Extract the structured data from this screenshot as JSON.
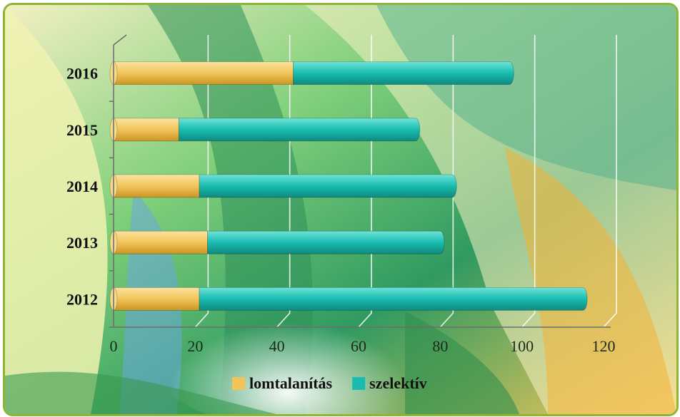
{
  "chart_data": {
    "type": "bar",
    "orientation": "horizontal",
    "stacked": true,
    "categories": [
      "2012",
      "2013",
      "2014",
      "2015",
      "2016"
    ],
    "series": [
      {
        "name": "lomtalanítás",
        "values": [
          21,
          23,
          21,
          16,
          44
        ],
        "color": "#f2c45a"
      },
      {
        "name": "szelektív",
        "values": [
          95,
          58,
          63,
          59,
          54
        ],
        "color": "#19bcb0"
      }
    ],
    "xlim": [
      0,
      120
    ],
    "xticks": [
      "0",
      "20",
      "40",
      "60",
      "80",
      "100",
      "120"
    ],
    "grid": true,
    "legend_position": "bottom",
    "title": "",
    "xlabel": "",
    "ylabel": ""
  }
}
